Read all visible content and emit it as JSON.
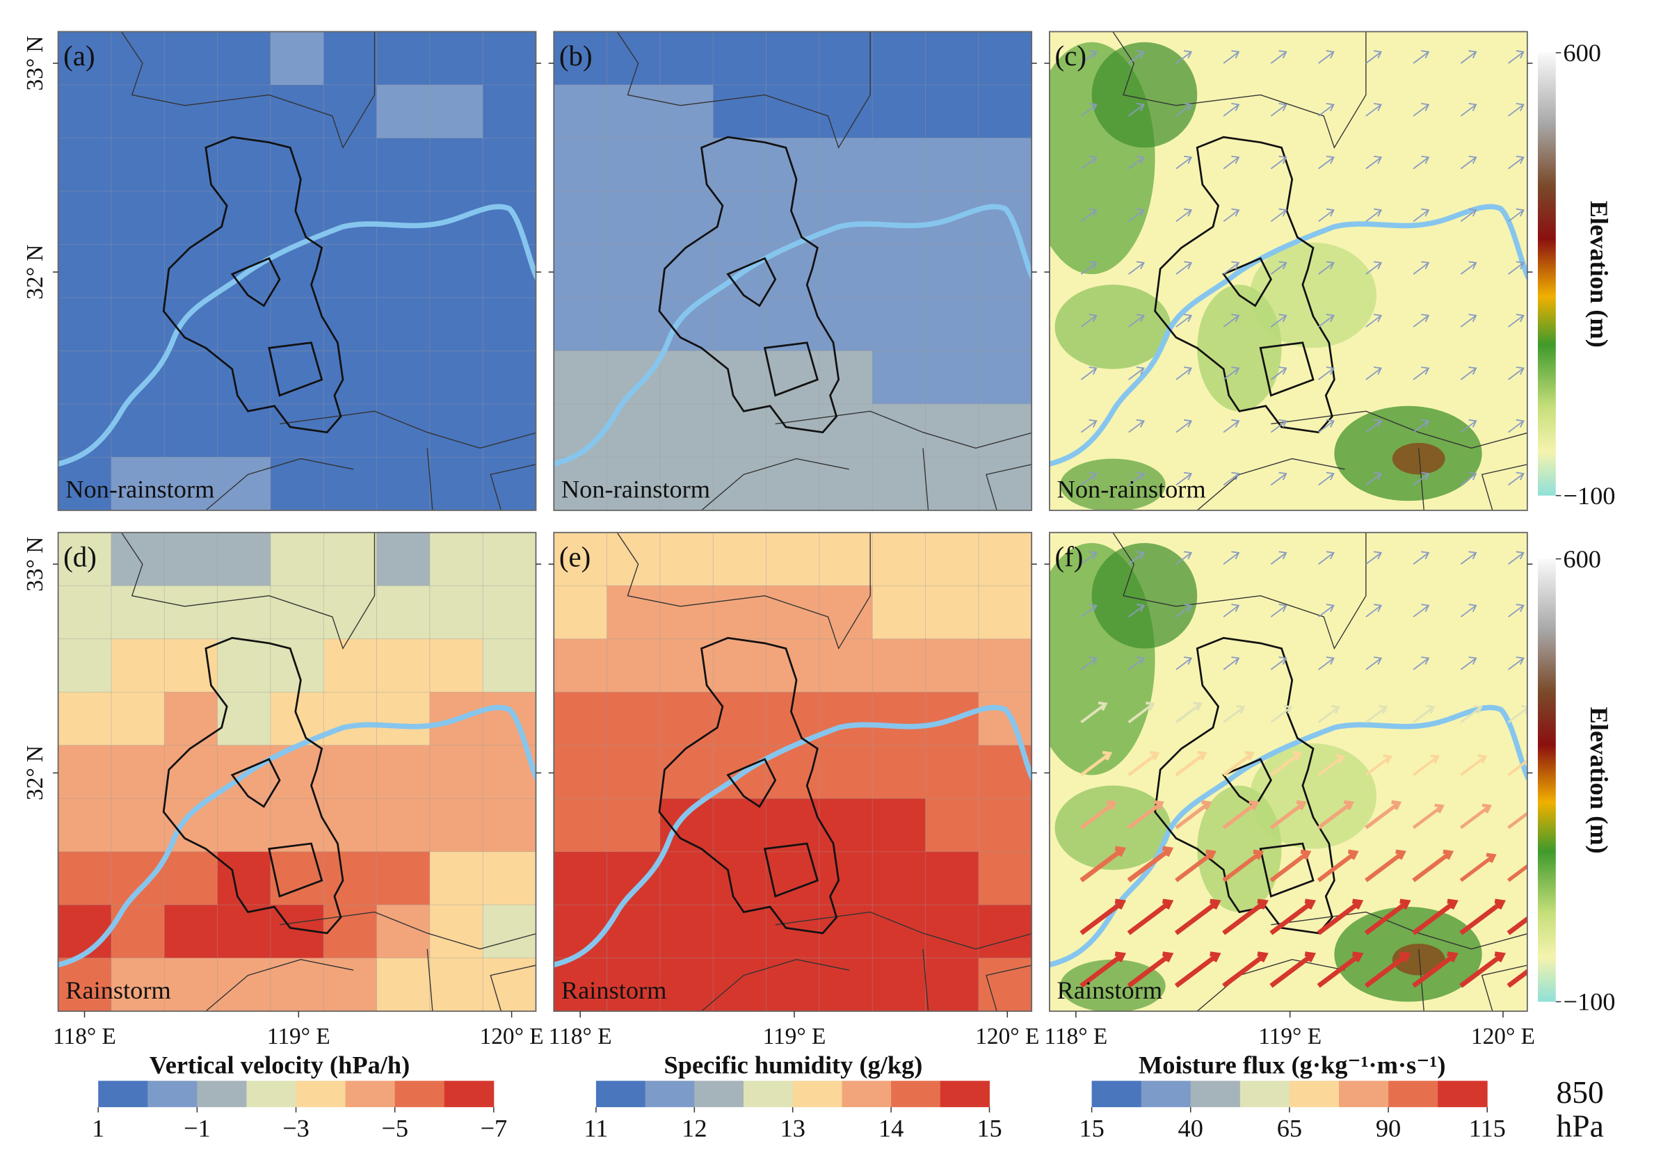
{
  "panels": [
    {
      "label": "(a)",
      "condition": "Non-rainstorm",
      "cells": [
        [
          0,
          0,
          0,
          0,
          1,
          0,
          0,
          0,
          0
        ],
        [
          0,
          0,
          0,
          0,
          0,
          0,
          1,
          1,
          0
        ],
        [
          0,
          0,
          0,
          0,
          0,
          0,
          0,
          0,
          0
        ],
        [
          0,
          0,
          0,
          0,
          0,
          0,
          0,
          0,
          0
        ],
        [
          0,
          0,
          0,
          0,
          0,
          0,
          0,
          0,
          0
        ],
        [
          0,
          0,
          0,
          0,
          0,
          0,
          0,
          0,
          0
        ],
        [
          0,
          0,
          0,
          0,
          0,
          0,
          0,
          0,
          0
        ],
        [
          0,
          0,
          0,
          0,
          0,
          0,
          0,
          0,
          0
        ],
        [
          0,
          1,
          1,
          1,
          0,
          0,
          0,
          0,
          0
        ]
      ]
    },
    {
      "label": "(b)",
      "condition": "Non-rainstorm",
      "cells": [
        [
          0,
          0,
          0,
          0,
          0,
          0,
          0,
          0,
          0
        ],
        [
          1,
          1,
          1,
          0,
          0,
          0,
          0,
          0,
          0
        ],
        [
          1,
          1,
          1,
          1,
          1,
          1,
          1,
          1,
          1
        ],
        [
          1,
          1,
          1,
          1,
          1,
          1,
          1,
          1,
          1
        ],
        [
          1,
          1,
          1,
          1,
          1,
          1,
          1,
          1,
          1
        ],
        [
          1,
          1,
          1,
          1,
          1,
          1,
          1,
          1,
          1
        ],
        [
          2,
          2,
          2,
          2,
          2,
          2,
          1,
          1,
          1
        ],
        [
          2,
          2,
          2,
          2,
          2,
          2,
          2,
          2,
          2
        ],
        [
          2,
          2,
          2,
          2,
          2,
          2,
          2,
          2,
          2
        ]
      ]
    },
    {
      "label": "(c)",
      "condition": "Non-rainstorm"
    },
    {
      "label": "(d)",
      "condition": "Rainstorm",
      "cells": [
        [
          3,
          2,
          2,
          2,
          3,
          3,
          2,
          3,
          3
        ],
        [
          3,
          3,
          3,
          3,
          3,
          3,
          3,
          3,
          3
        ],
        [
          3,
          4,
          4,
          3,
          3,
          4,
          4,
          4,
          3
        ],
        [
          4,
          4,
          5,
          3,
          4,
          4,
          4,
          5,
          5
        ],
        [
          5,
          5,
          5,
          5,
          5,
          5,
          5,
          5,
          5
        ],
        [
          5,
          5,
          5,
          5,
          5,
          5,
          5,
          5,
          5
        ],
        [
          6,
          6,
          6,
          7,
          6,
          6,
          6,
          4,
          4
        ],
        [
          7,
          6,
          7,
          7,
          7,
          6,
          5,
          4,
          3
        ],
        [
          6,
          5,
          5,
          5,
          5,
          5,
          4,
          4,
          4
        ]
      ]
    },
    {
      "label": "(e)",
      "condition": "Rainstorm",
      "cells": [
        [
          4,
          4,
          4,
          4,
          4,
          4,
          4,
          4,
          4
        ],
        [
          4,
          5,
          5,
          5,
          5,
          5,
          4,
          4,
          4
        ],
        [
          5,
          5,
          5,
          5,
          5,
          5,
          5,
          5,
          5
        ],
        [
          6,
          6,
          6,
          6,
          6,
          6,
          6,
          6,
          5
        ],
        [
          6,
          6,
          6,
          6,
          6,
          6,
          6,
          6,
          6
        ],
        [
          6,
          6,
          7,
          7,
          7,
          7,
          7,
          6,
          6
        ],
        [
          7,
          7,
          7,
          7,
          7,
          7,
          7,
          7,
          6
        ],
        [
          7,
          7,
          7,
          7,
          7,
          7,
          7,
          7,
          7
        ],
        [
          7,
          7,
          7,
          7,
          7,
          7,
          7,
          7,
          6
        ]
      ]
    },
    {
      "label": "(f)",
      "condition": "Rainstorm"
    }
  ],
  "lat_labels": [
    "33° N",
    "32° N"
  ],
  "lon_labels": [
    "118° E",
    "119° E",
    "120° E"
  ],
  "colorbars": [
    {
      "title": "Vertical velocity (hPa/h)",
      "colors": [
        "#4a76be",
        "#7d9bc8",
        "#a5b4ba",
        "#dfe3b6",
        "#fbd79a",
        "#f2a57b",
        "#e6704e",
        "#d5372d"
      ],
      "ticks": [
        1,
        {
          "value": -1,
          "label": "−1"
        },
        {
          "value": -3,
          "label": "−3"
        },
        {
          "value": -5,
          "label": "−5"
        },
        {
          "value": -7,
          "label": "−7"
        }
      ]
    },
    {
      "title": "Specific humidity (g/kg)",
      "colors": [
        "#4a76be",
        "#7d9bc8",
        "#a5b4ba",
        "#dfe3b6",
        "#fbd79a",
        "#f2a57b",
        "#e6704e",
        "#d5372d"
      ],
      "ticks": [
        11,
        12,
        13,
        14,
        15
      ]
    },
    {
      "title": "Moisture flux (g·kg⁻¹·m·s⁻¹)",
      "colors": [
        "#4a76be",
        "#7d9bc8",
        "#a5b4ba",
        "#dfe3b6",
        "#fbd79a",
        "#f2a57b",
        "#e6704e",
        "#d5372d"
      ],
      "ticks": [
        15,
        40,
        65,
        90,
        115
      ]
    }
  ],
  "level": {
    "value": "850",
    "unit": "hPa"
  },
  "elevation_bar": {
    "title": "Elevation (m)",
    "ticks": [
      600,
      {
        "value": -100,
        "label": "−100"
      }
    ]
  }
}
